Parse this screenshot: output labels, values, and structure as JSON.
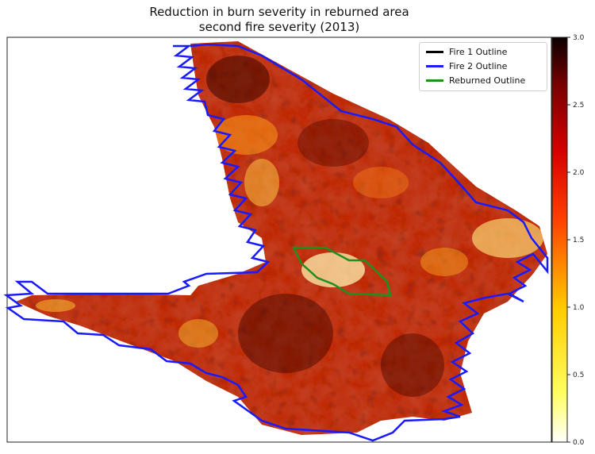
{
  "chart_data": {
    "type": "heatmap",
    "title": "Reduction in burn severity in reburned area",
    "subtitle": "second fire severity (2013)",
    "colormap": "hot_r",
    "color_range": [
      0.0,
      3.0
    ],
    "colorbar_ticks": [
      "0.0",
      "0.5",
      "1.0",
      "1.5",
      "2.0",
      "2.5",
      "3.0"
    ],
    "legend_position": "top-right",
    "legend": [
      {
        "label": "Fire 1 Outline",
        "color": "#000000"
      },
      {
        "label": "Fire 2 Outline",
        "color": "#1a1aff"
      },
      {
        "label": "Reburned Outline",
        "color": "#1f8f1f"
      }
    ],
    "grid": false
  }
}
